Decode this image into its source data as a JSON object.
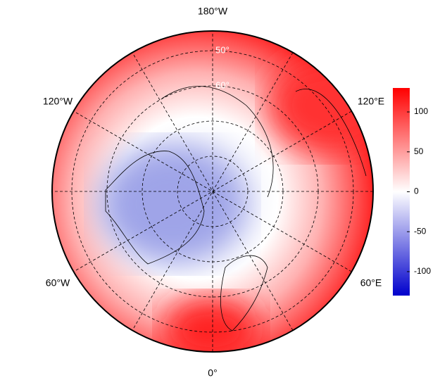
{
  "map": {
    "longitude_labels": [
      "180°W",
      "120°W",
      "120°E",
      "60°W",
      "60°E",
      "0°"
    ],
    "latitude_labels": [
      "50°",
      "60°"
    ],
    "colorbar": {
      "colors": [
        "#0000cc",
        "#ffffff",
        "#ff0000"
      ],
      "lim": [
        -130,
        130
      ],
      "ticks": [
        100,
        50,
        0,
        -50,
        -100
      ]
    }
  }
}
